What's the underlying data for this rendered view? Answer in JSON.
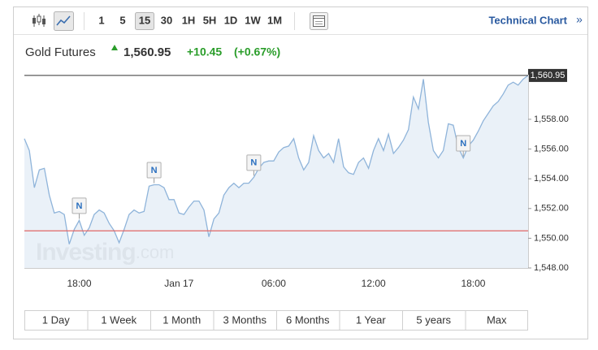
{
  "toolbar": {
    "intervals": [
      "1",
      "5",
      "15",
      "30",
      "1H",
      "5H",
      "1D",
      "1W",
      "1M"
    ],
    "selected_index": 2,
    "link": "Technical Chart",
    "link_arrow": "»"
  },
  "quote": {
    "name": "Gold Futures",
    "price": "1,560.95",
    "change": "+10.45",
    "change_percent": "(+0.67%)"
  },
  "watermark": {
    "brand": "Investing",
    "suffix": ".com"
  },
  "ranges": [
    "1 Day",
    "1 Week",
    "1 Month",
    "3 Months",
    "6 Months",
    "1 Year",
    "5 years",
    "Max"
  ],
  "chart_data": {
    "type": "line",
    "categories": [
      null,
      null,
      null,
      null,
      null,
      null,
      null,
      null,
      null,
      null,
      null,
      "18:00",
      null,
      null,
      null,
      null,
      null,
      null,
      null,
      null,
      null,
      null,
      null,
      null,
      null,
      null,
      null,
      null,
      null,
      null,
      null,
      "Jan 17",
      null,
      null,
      null,
      null,
      null,
      null,
      null,
      null,
      null,
      null,
      null,
      null,
      null,
      null,
      null,
      null,
      null,
      null,
      "06:00",
      null,
      null,
      null,
      null,
      null,
      null,
      null,
      null,
      null,
      null,
      null,
      null,
      null,
      null,
      null,
      null,
      null,
      null,
      null,
      "12:00",
      null,
      null,
      null,
      null,
      null,
      null,
      null,
      null,
      null,
      null,
      null,
      null,
      null,
      null,
      null,
      null,
      null,
      null,
      null,
      "18:00",
      null,
      null,
      null,
      null,
      null,
      null,
      null,
      null,
      null,
      null,
      null
    ],
    "values": [
      1556.7,
      1555.9,
      1553.4,
      1554.6,
      1554.7,
      1552.9,
      1551.7,
      1551.8,
      1551.6,
      1549.6,
      1550.6,
      1551.2,
      1550.2,
      1550.7,
      1551.6,
      1551.9,
      1551.7,
      1551.0,
      1550.5,
      1549.7,
      1550.6,
      1551.6,
      1551.9,
      1551.7,
      1551.8,
      1553.5,
      1553.6,
      1553.6,
      1553.4,
      1552.6,
      1552.6,
      1551.7,
      1551.6,
      1552.1,
      1552.5,
      1552.5,
      1551.9,
      1550.1,
      1551.3,
      1551.7,
      1552.9,
      1553.4,
      1553.7,
      1553.4,
      1553.7,
      1553.7,
      1554.1,
      1554.7,
      1555.1,
      1555.2,
      1555.2,
      1555.8,
      1556.1,
      1556.2,
      1556.7,
      1555.4,
      1554.6,
      1555.1,
      1556.9,
      1555.9,
      1555.4,
      1555.7,
      1555.1,
      1556.7,
      1554.8,
      1554.4,
      1554.3,
      1555.1,
      1555.4,
      1554.7,
      1555.9,
      1556.7,
      1555.9,
      1557.0,
      1555.7,
      1556.1,
      1556.6,
      1557.3,
      1559.5,
      1558.7,
      1560.7,
      1557.8,
      1555.9,
      1555.4,
      1555.9,
      1557.7,
      1557.6,
      1556.1,
      1555.4,
      1556.2,
      1556.6,
      1557.2,
      1557.9,
      1558.4,
      1558.9,
      1559.2,
      1559.7,
      1560.3,
      1560.5,
      1560.3,
      1560.7,
      1560.95
    ],
    "color": "#8fb4da",
    "fill": "#e6eef7",
    "ylim": [
      1548,
      1561
    ],
    "yticks": [
      {
        "value": 1548,
        "label": "1,548.00"
      },
      {
        "value": 1550,
        "label": "1,550.00"
      },
      {
        "value": 1552,
        "label": "1,552.00"
      },
      {
        "value": 1554,
        "label": "1,554.00"
      },
      {
        "value": 1556,
        "label": "1,556.00"
      },
      {
        "value": 1558,
        "label": "1,558.00"
      }
    ],
    "y_axis_side": "right",
    "grid": false,
    "previous_close": 1550.5,
    "previous_close_color": "#e06666",
    "last_value_label": "1,560.95",
    "news_markers": [
      {
        "label": "N",
        "category_index": 11
      },
      {
        "label": "N",
        "category_index": 26
      },
      {
        "label": "N",
        "category_index": 46
      },
      {
        "label": "N",
        "category_index": 88
      }
    ]
  }
}
